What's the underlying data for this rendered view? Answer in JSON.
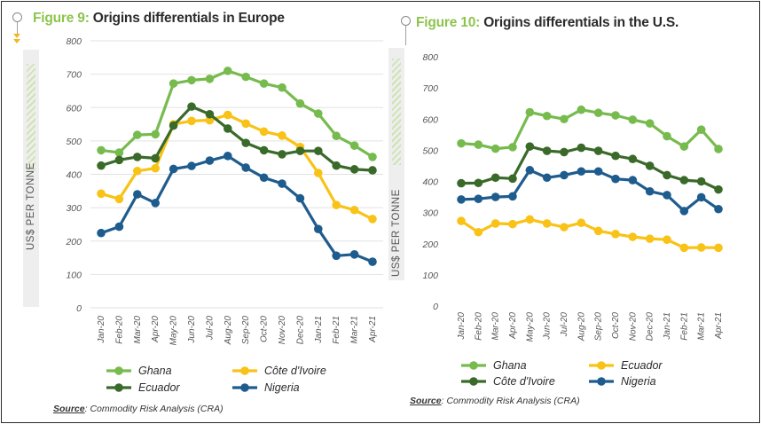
{
  "source_label": "Source",
  "source_text": ": Commodity Risk Analysis (CRA)",
  "colors": {
    "Ghana": "#77bb4e",
    "Cote": "#f9c216",
    "Ecuador": "#3a6a2a",
    "Nigeria": "#1f5c8e"
  },
  "chart_data": [
    {
      "type": "line",
      "figure_label": "Figure 9:",
      "title": "Origins differentials in Europe",
      "ylabel": "US$ PER TONNE",
      "xlabel": "",
      "ylim": [
        0,
        800
      ],
      "yticks": [
        0,
        100,
        200,
        300,
        400,
        500,
        600,
        700,
        800
      ],
      "grid": true,
      "legend": "bottom",
      "categories": [
        "Jan-20",
        "Feb-20",
        "Mar-20",
        "Apr-20",
        "May-20",
        "Jun-20",
        "Jul-20",
        "Aug-20",
        "Sep-20",
        "Oct-20",
        "Nov-20",
        "Dec-20",
        "Jan-21",
        "Feb-21",
        "Mar-21",
        "Apr-21"
      ],
      "series": [
        {
          "name": "Ghana",
          "color_key": "Ghana",
          "values": [
            472,
            465,
            518,
            520,
            672,
            682,
            686,
            710,
            692,
            672,
            660,
            612,
            582,
            515,
            486,
            452
          ]
        },
        {
          "name": "Côte d'Ivoire",
          "color_key": "Cote",
          "values": [
            342,
            326,
            410,
            418,
            550,
            560,
            562,
            578,
            552,
            528,
            516,
            482,
            404,
            308,
            293,
            266
          ]
        },
        {
          "name": "Ecuador",
          "color_key": "Ecuador",
          "values": [
            426,
            443,
            452,
            448,
            546,
            603,
            580,
            537,
            494,
            472,
            460,
            470,
            470,
            426,
            415,
            412
          ]
        },
        {
          "name": "Nigeria",
          "color_key": "Nigeria",
          "values": [
            224,
            243,
            340,
            314,
            416,
            425,
            441,
            455,
            420,
            390,
            372,
            328,
            236,
            156,
            160,
            138
          ]
        }
      ],
      "legend_order": [
        "Ghana",
        "Côte d'Ivoire",
        "Ecuador",
        "Nigeria"
      ]
    },
    {
      "type": "line",
      "figure_label": "Figure 10:",
      "title": "Origins differentials in the U.S.",
      "ylabel": "US$ PER TONNE",
      "xlabel": "",
      "ylim": [
        0,
        800
      ],
      "yticks": [
        0,
        100,
        200,
        300,
        400,
        500,
        600,
        700,
        800
      ],
      "grid": false,
      "legend": "bottom",
      "categories": [
        "Jan-20",
        "Feb-20",
        "Mar-20",
        "Apr-20",
        "May-20",
        "Jun-20",
        "Jul-20",
        "Aug-20",
        "Sep-20",
        "Oct-20",
        "Nov-20",
        "Dec-20",
        "Jan-21",
        "Feb-21",
        "Mar-21",
        "Apr-21"
      ],
      "series": [
        {
          "name": "Ghana",
          "color_key": "Ghana",
          "values": [
            522,
            518,
            505,
            510,
            622,
            610,
            600,
            630,
            620,
            612,
            598,
            586,
            545,
            512,
            566,
            504
          ]
        },
        {
          "name": "Ecuador",
          "color_key": "Cote",
          "values": [
            273,
            237,
            265,
            263,
            278,
            265,
            253,
            267,
            241,
            231,
            222,
            216,
            213,
            187,
            188,
            187
          ]
        },
        {
          "name": "Côte d'Ivoire",
          "color_key": "Ecuador",
          "values": [
            394,
            395,
            412,
            409,
            512,
            498,
            494,
            508,
            498,
            482,
            472,
            450,
            420,
            404,
            400,
            374
          ]
        },
        {
          "name": "Nigeria",
          "color_key": "Nigeria",
          "values": [
            342,
            344,
            350,
            352,
            436,
            412,
            420,
            432,
            432,
            408,
            404,
            368,
            356,
            305,
            349,
            311
          ]
        }
      ],
      "legend_order": [
        "Ghana",
        "Ecuador",
        "Côte d'Ivoire",
        "Nigeria"
      ]
    }
  ]
}
